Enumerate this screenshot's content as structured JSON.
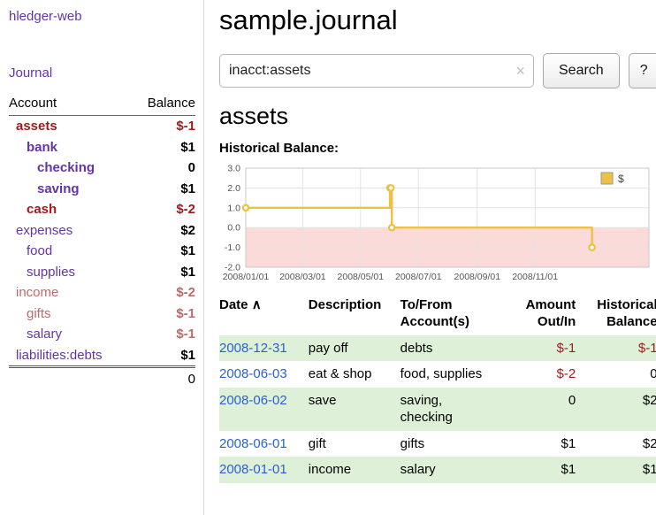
{
  "sidebar": {
    "app_title": "hledger-web",
    "journal_label": "Journal",
    "accounts_table": {
      "headers": {
        "account": "Account",
        "balance": "Balance"
      },
      "rows": [
        {
          "name": "assets",
          "balance": "$-1",
          "depth": 1,
          "bold": true,
          "name_color": "negstrong",
          "balance_color": "negstrong"
        },
        {
          "name": "bank",
          "balance": "$1",
          "depth": 2,
          "bold": true,
          "name_color": "link",
          "balance_color": "default"
        },
        {
          "name": "checking",
          "balance": "0",
          "depth": 3,
          "bold": true,
          "name_color": "link",
          "balance_color": "default"
        },
        {
          "name": "saving",
          "balance": "$1",
          "depth": 3,
          "bold": true,
          "name_color": "link",
          "balance_color": "default"
        },
        {
          "name": "cash",
          "balance": "$-2",
          "depth": 2,
          "bold": true,
          "name_color": "negstrong",
          "balance_color": "negstrong"
        },
        {
          "name": "expenses",
          "balance": "$2",
          "depth": 1,
          "bold": false,
          "name_color": "link",
          "balance_color": "default"
        },
        {
          "name": "food",
          "balance": "$1",
          "depth": 2,
          "bold": false,
          "name_color": "link",
          "balance_color": "default"
        },
        {
          "name": "supplies",
          "balance": "$1",
          "depth": 2,
          "bold": false,
          "name_color": "link",
          "balance_color": "default"
        },
        {
          "name": "income",
          "balance": "$-2",
          "depth": 1,
          "bold": false,
          "name_color": "negsoft",
          "balance_color": "negsoft"
        },
        {
          "name": "gifts",
          "balance": "$-1",
          "depth": 2,
          "bold": false,
          "name_color": "negsoft",
          "balance_color": "negsoft"
        },
        {
          "name": "salary",
          "balance": "$-1",
          "depth": 2,
          "bold": false,
          "name_color": "link",
          "balance_color": "negsoft"
        },
        {
          "name": "liabilities:debts",
          "balance": "$1",
          "depth": 1,
          "bold": false,
          "name_color": "link",
          "balance_color": "default"
        }
      ],
      "total": "0"
    }
  },
  "main": {
    "title": "sample.journal",
    "search": {
      "value": "inacct:assets",
      "clear_icon": "×",
      "button_label": "Search",
      "help_label": "?"
    },
    "account_heading": "assets",
    "chart_label": "Historical Balance:",
    "register_table": {
      "sort_indicator": "∧",
      "headers": {
        "date": "Date",
        "description": "Description",
        "accounts": "To/From Account(s)",
        "amount": "Amount Out/In",
        "balance": "Historical Balance"
      },
      "rows": [
        {
          "date": "2008-12-31",
          "description": "pay off",
          "accounts": "debts",
          "amount": "$-1",
          "balance": "$-1"
        },
        {
          "date": "2008-06-03",
          "description": "eat & shop",
          "accounts": "food, supplies",
          "amount": "$-2",
          "balance": "0"
        },
        {
          "date": "2008-06-02",
          "description": "save",
          "accounts": "saving,\nchecking",
          "amount": "0",
          "balance": "$2"
        },
        {
          "date": "2008-06-01",
          "description": "gift",
          "accounts": "gifts",
          "amount": "$1",
          "balance": "$2"
        },
        {
          "date": "2008-01-01",
          "description": "income",
          "accounts": "salary",
          "amount": "$1",
          "balance": "$1"
        }
      ]
    }
  },
  "chart_data": {
    "type": "line",
    "title": "Historical Balance:",
    "step": true,
    "series": [
      {
        "name": "$",
        "color": "#edc240",
        "points": [
          [
            "2008-01-01",
            1
          ],
          [
            "2008-06-01",
            2
          ],
          [
            "2008-06-02",
            2
          ],
          [
            "2008-06-03",
            0
          ],
          [
            "2008-12-31",
            -1
          ]
        ]
      }
    ],
    "x_ticks": [
      "2008/01/01",
      "2008/03/01",
      "2008/05/01",
      "2008/07/01",
      "2008/09/01",
      "2008/11/01"
    ],
    "y_ticks": [
      "3.0",
      "2.0",
      "1.0",
      "0.0",
      "-1.0",
      "-2.0"
    ],
    "xlim": [
      "2008-01-01",
      "2009-03-01"
    ],
    "ylim": [
      -2,
      3
    ],
    "grid": true,
    "legend_position": "top-right",
    "negative_region_color": "#fbdada"
  }
}
